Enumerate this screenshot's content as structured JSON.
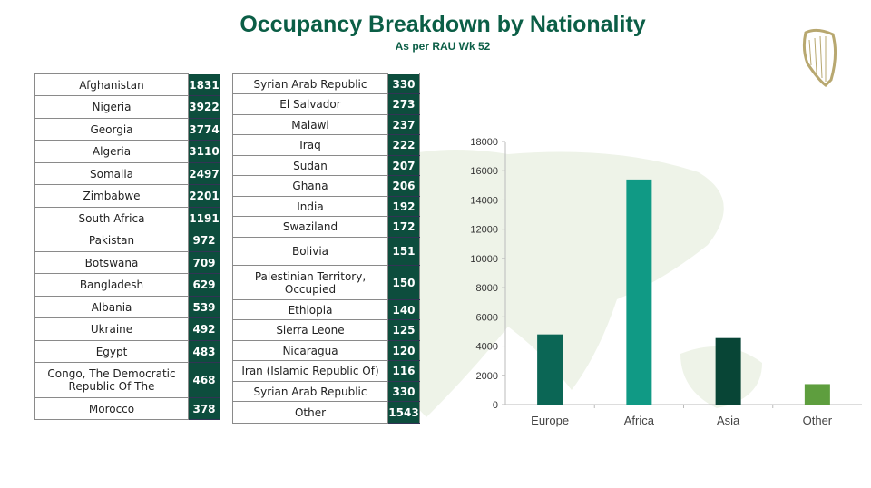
{
  "header": {
    "title": "Occupancy Breakdown by Nationality",
    "subtitle": "As per RAU Wk 52"
  },
  "logo": {
    "name": "harp-emblem-icon"
  },
  "table_left": [
    {
      "country": "Afghanistan",
      "count": "1831"
    },
    {
      "country": "Nigeria",
      "count": "3922"
    },
    {
      "country": "Georgia",
      "count": "3774"
    },
    {
      "country": "Algeria",
      "count": "3110"
    },
    {
      "country": "Somalia",
      "count": "2497"
    },
    {
      "country": "Zimbabwe",
      "count": "2201"
    },
    {
      "country": "South Africa",
      "count": "1191"
    },
    {
      "country": "Pakistan",
      "count": "972"
    },
    {
      "country": "Botswana",
      "count": "709"
    },
    {
      "country": "Bangladesh",
      "count": "629"
    },
    {
      "country": "Albania",
      "count": "539"
    },
    {
      "country": "Ukraine",
      "count": "492"
    },
    {
      "country": "Egypt",
      "count": "483"
    },
    {
      "country": "Congo, The Democratic Republic Of The",
      "count": "468"
    },
    {
      "country": "Morocco",
      "count": "378"
    }
  ],
  "table_right": [
    {
      "country": "Syrian Arab Republic",
      "count": "330"
    },
    {
      "country": "El Salvador",
      "count": "273"
    },
    {
      "country": "Malawi",
      "count": "237"
    },
    {
      "country": "Iraq",
      "count": "222"
    },
    {
      "country": "Sudan",
      "count": "207"
    },
    {
      "country": "Ghana",
      "count": "206"
    },
    {
      "country": "India",
      "count": "192"
    },
    {
      "country": "Swaziland",
      "count": "172"
    },
    {
      "country": "Bolivia",
      "count": "151"
    },
    {
      "country": "Palestinian Territory, Occupied",
      "count": "150"
    },
    {
      "country": "Ethiopia",
      "count": "140"
    },
    {
      "country": "Sierra Leone",
      "count": "125"
    },
    {
      "country": "Nicaragua",
      "count": "120"
    },
    {
      "country": "Iran (Islamic Republic Of)",
      "count": "116"
    },
    {
      "country": "Syrian Arab Republic",
      "count": "330"
    },
    {
      "country": "Other",
      "count": "1543"
    }
  ],
  "chart_data": {
    "type": "bar",
    "title": "",
    "xlabel": "",
    "ylabel": "",
    "categories": [
      "Europe",
      "Africa",
      "Asia",
      "Other"
    ],
    "values": [
      4800,
      15400,
      4550,
      1400
    ],
    "colors": [
      "#0b6655",
      "#109a85",
      "#084536",
      "#5e9e3e"
    ],
    "ylim": [
      0,
      18000
    ],
    "yticks": [
      "0",
      "2000",
      "4000",
      "6000",
      "8000",
      "10000",
      "12000",
      "14000",
      "16000",
      "18000"
    ],
    "grid": false,
    "legend": "none"
  }
}
